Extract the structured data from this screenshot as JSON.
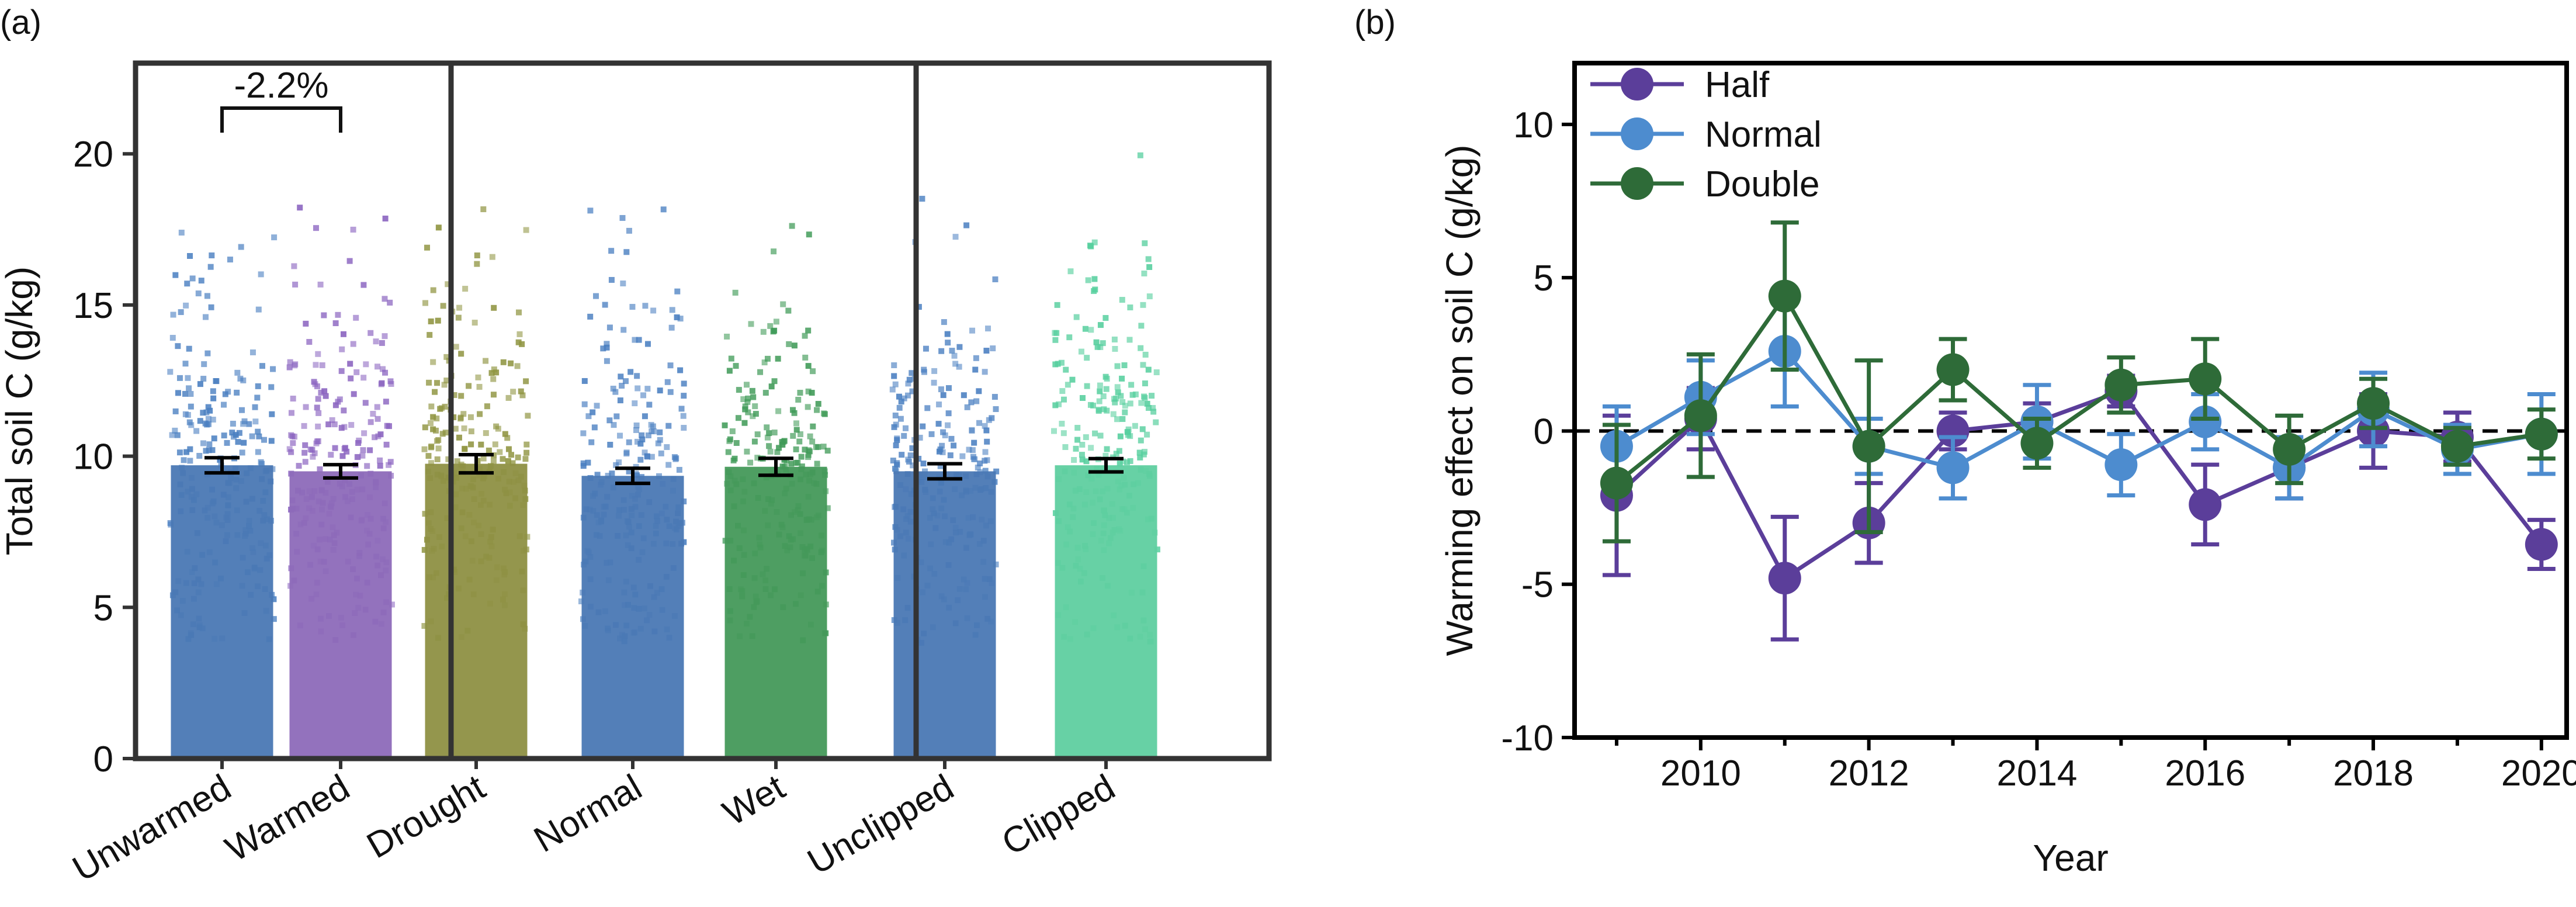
{
  "chart_data": [
    {
      "panel": "(a)",
      "type": "bar",
      "ylabel": "Total soil C (g/kg)",
      "ylim": [
        0,
        23
      ],
      "yticks": [
        0,
        5,
        10,
        15,
        20
      ],
      "groups": [
        {
          "categories": [
            "Unwarmed",
            "Warmed"
          ]
        },
        {
          "categories": [
            "Drought",
            "Normal",
            "Wet"
          ]
        },
        {
          "categories": [
            "Unclipped",
            "Clipped"
          ]
        }
      ],
      "bars": [
        {
          "category": "Unwarmed",
          "value": 9.7,
          "error": 0.25,
          "color": "#4a78b4",
          "point_color": "#4a7fc1"
        },
        {
          "category": "Warmed",
          "value": 9.5,
          "error": 0.22,
          "color": "#8d6ab9",
          "point_color": "#8a63c0"
        },
        {
          "category": "Drought",
          "value": 9.75,
          "error": 0.3,
          "color": "#8e9043",
          "point_color": "#8f9440"
        },
        {
          "category": "Normal",
          "value": 9.35,
          "error": 0.25,
          "color": "#4a78b4",
          "point_color": "#4a7fc1"
        },
        {
          "category": "Wet",
          "value": 9.65,
          "error": 0.28,
          "color": "#45995a",
          "point_color": "#3f9a57"
        },
        {
          "category": "Unclipped",
          "value": 9.5,
          "error": 0.25,
          "color": "#4a78b4",
          "point_color": "#4a7fc1"
        },
        {
          "category": "Clipped",
          "value": 9.7,
          "error": 0.22,
          "color": "#5fcfa0",
          "point_color": "#56cf9e"
        }
      ],
      "annotation": {
        "text": "-2.2%",
        "between": [
          "Unwarmed",
          "Warmed"
        ]
      }
    },
    {
      "panel": "(b)",
      "type": "line",
      "xlabel": "Year",
      "ylabel": "Warming effect on soil C (g/kg)",
      "xlim": [
        2008.5,
        2020.3
      ],
      "ylim": [
        -10,
        12
      ],
      "xticks": [
        2010,
        2012,
        2014,
        2016,
        2018,
        2020
      ],
      "yticks": [
        -10,
        -5,
        0,
        5,
        10
      ],
      "zero_line": "dashed",
      "x": [
        2009,
        2010,
        2011,
        2012,
        2013,
        2014,
        2015,
        2016,
        2017,
        2018,
        2019,
        2020
      ],
      "series": [
        {
          "name": "Half",
          "color": "#5b3e9a",
          "values": [
            -2.1,
            0.4,
            -4.8,
            -3.0,
            0.0,
            0.3,
            1.3,
            -2.4,
            -1.2,
            0.0,
            -0.2,
            -3.7
          ],
          "errors": [
            2.6,
            1.0,
            2.0,
            1.3,
            0.6,
            0.6,
            0.5,
            1.3,
            1.0,
            1.2,
            0.8,
            0.8
          ]
        },
        {
          "name": "Normal",
          "color": "#4d8ccf",
          "values": [
            -0.5,
            1.1,
            2.6,
            -0.5,
            -1.2,
            0.3,
            -1.1,
            0.3,
            -1.2,
            0.7,
            -0.6,
            -0.1
          ],
          "errors": [
            1.3,
            1.2,
            1.8,
            0.9,
            1.0,
            1.2,
            1.0,
            0.9,
            1.0,
            1.2,
            0.8,
            1.3
          ]
        },
        {
          "name": "Double",
          "color": "#2e6b38",
          "values": [
            -1.7,
            0.5,
            4.4,
            -0.5,
            2.0,
            -0.4,
            1.5,
            1.7,
            -0.6,
            0.9,
            -0.5,
            -0.1
          ],
          "errors": [
            1.9,
            2.0,
            2.4,
            2.8,
            1.0,
            0.8,
            0.9,
            1.3,
            1.1,
            0.8,
            0.6,
            0.8
          ]
        }
      ],
      "legend": [
        "Half",
        "Normal",
        "Double"
      ],
      "legend_position": "top-left"
    }
  ]
}
